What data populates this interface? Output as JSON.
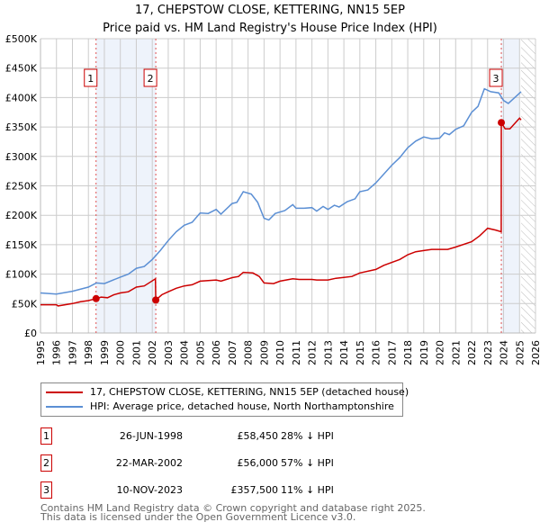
{
  "chart_data": {
    "type": "line",
    "title": "17, CHEPSTOW CLOSE, KETTERING, NN15 5EP",
    "subtitle": "Price paid vs. HM Land Registry's House Price Index (HPI)",
    "xlabel": "",
    "ylabel": "",
    "xlim": [
      1995,
      2026
    ],
    "ylim": [
      0,
      500000
    ],
    "x_ticks": [
      "1995",
      "1996",
      "1997",
      "1998",
      "1999",
      "2000",
      "2001",
      "2002",
      "2003",
      "2004",
      "2005",
      "2006",
      "2007",
      "2008",
      "2009",
      "2010",
      "2011",
      "2012",
      "2013",
      "2014",
      "2015",
      "2016",
      "2017",
      "2018",
      "2019",
      "2020",
      "2021",
      "2022",
      "2023",
      "2024",
      "2025",
      "2026"
    ],
    "y_ticks": [
      {
        "value": 0,
        "label": "£0"
      },
      {
        "value": 50000,
        "label": "£50K"
      },
      {
        "value": 100000,
        "label": "£100K"
      },
      {
        "value": 150000,
        "label": "£150K"
      },
      {
        "value": 200000,
        "label": "£200K"
      },
      {
        "value": 250000,
        "label": "£250K"
      },
      {
        "value": 300000,
        "label": "£300K"
      },
      {
        "value": 350000,
        "label": "£350K"
      },
      {
        "value": 400000,
        "label": "£400K"
      },
      {
        "value": 450000,
        "label": "£450K"
      },
      {
        "value": 500000,
        "label": "£500K"
      }
    ],
    "grid": true,
    "shaded_ranges": [
      [
        1998.48,
        2002.22
      ],
      [
        2023.86,
        2025.0
      ]
    ],
    "forecast_hatch_from": 2025.1,
    "series": [
      {
        "name": "17, CHEPSTOW CLOSE, KETTERING, NN15 5EP (detached house)",
        "color": "#cc0000",
        "x": [
          1995,
          1996,
          1996.1,
          1997,
          1997.5,
          1998,
          1998.48,
          1998.8,
          1999.2,
          1999.6,
          2000,
          2000.5,
          2001,
          2001.5,
          2002.2,
          2002.22,
          2002.6,
          2003,
          2003.5,
          2004,
          2004.5,
          2005,
          2006,
          2006.3,
          2007,
          2007.4,
          2007.7,
          2008.3,
          2008.7,
          2009,
          2009.6,
          2010,
          2010.8,
          2011.2,
          2012,
          2012.3,
          2013,
          2013.5,
          2014.5,
          2015,
          2016,
          2016.5,
          2017.5,
          2018,
          2018.5,
          2019,
          2019.5,
          2020.5,
          2021,
          2022,
          2022.5,
          2023,
          2023.5,
          2023.85,
          2023.86,
          2024.1,
          2024.4,
          2025,
          2025.1
        ],
        "y": [
          48000,
          48000,
          46000,
          50000,
          53000,
          55000,
          58450,
          61000,
          60000,
          65000,
          68000,
          70000,
          78000,
          80000,
          92000,
          56000,
          65000,
          70000,
          76000,
          80000,
          82000,
          88000,
          90000,
          88000,
          94000,
          96000,
          103000,
          102000,
          96000,
          85000,
          84000,
          88000,
          92000,
          91000,
          91000,
          90000,
          90000,
          93000,
          96000,
          102000,
          108000,
          115000,
          125000,
          133000,
          138000,
          140000,
          142000,
          142000,
          146000,
          155000,
          165000,
          178000,
          175000,
          172000,
          357500,
          347000,
          347000,
          365000,
          362000
        ]
      },
      {
        "name": "HPI: Average price, detached house, North Northamptonshire",
        "color": "#5b8fd4",
        "x": [
          1995,
          1996,
          1997,
          1998,
          1998.5,
          1999,
          2000,
          2000.5,
          2001,
          2001.5,
          2002,
          2002.5,
          2003,
          2003.5,
          2004,
          2004.5,
          2005,
          2005.5,
          2006,
          2006.3,
          2007,
          2007.3,
          2007.7,
          2008.2,
          2008.6,
          2009,
          2009.3,
          2009.7,
          2010.3,
          2010.8,
          2011,
          2011.5,
          2012,
          2012.3,
          2012.7,
          2013,
          2013.4,
          2013.7,
          2014.2,
          2014.7,
          2015,
          2015.5,
          2016,
          2016.5,
          2017,
          2017.5,
          2018,
          2018.5,
          2019,
          2019.5,
          2020,
          2020.3,
          2020.6,
          2021,
          2021.5,
          2022,
          2022.4,
          2022.8,
          2023.2,
          2023.7,
          2024,
          2024.3,
          2024.7,
          2025.1
        ],
        "y": [
          68000,
          66000,
          71000,
          78000,
          85000,
          84000,
          95000,
          100000,
          110000,
          113000,
          125000,
          140000,
          157000,
          172000,
          183000,
          188000,
          204000,
          203000,
          210000,
          202000,
          220000,
          222000,
          240000,
          236000,
          222000,
          195000,
          192000,
          203000,
          208000,
          218000,
          212000,
          212000,
          213000,
          207000,
          215000,
          210000,
          217000,
          214000,
          223000,
          228000,
          240000,
          243000,
          255000,
          270000,
          285000,
          298000,
          315000,
          326000,
          333000,
          330000,
          331000,
          340000,
          337000,
          346000,
          352000,
          375000,
          385000,
          415000,
          410000,
          408000,
          395000,
          390000,
          400000,
          410000
        ]
      }
    ],
    "sales": [
      {
        "label": "1",
        "x": 1998.48,
        "price": 58450
      },
      {
        "label": "2",
        "x": 2002.22,
        "price": 56000
      },
      {
        "label": "3",
        "x": 2023.86,
        "price": 357500
      }
    ],
    "legend_position": "below"
  },
  "table": [
    {
      "num": "1",
      "date": "26-JUN-1998",
      "price": "£58,450",
      "hpi": "28% ↓ HPI"
    },
    {
      "num": "2",
      "date": "22-MAR-2002",
      "price": "£56,000",
      "hpi": "57% ↓ HPI"
    },
    {
      "num": "3",
      "date": "10-NOV-2023",
      "price": "£357,500",
      "hpi": "11% ↓ HPI"
    }
  ],
  "footer": {
    "line1": "Contains HM Land Registry data © Crown copyright and database right 2025.",
    "line2": "This data is licensed under the Open Government Licence v3.0."
  }
}
